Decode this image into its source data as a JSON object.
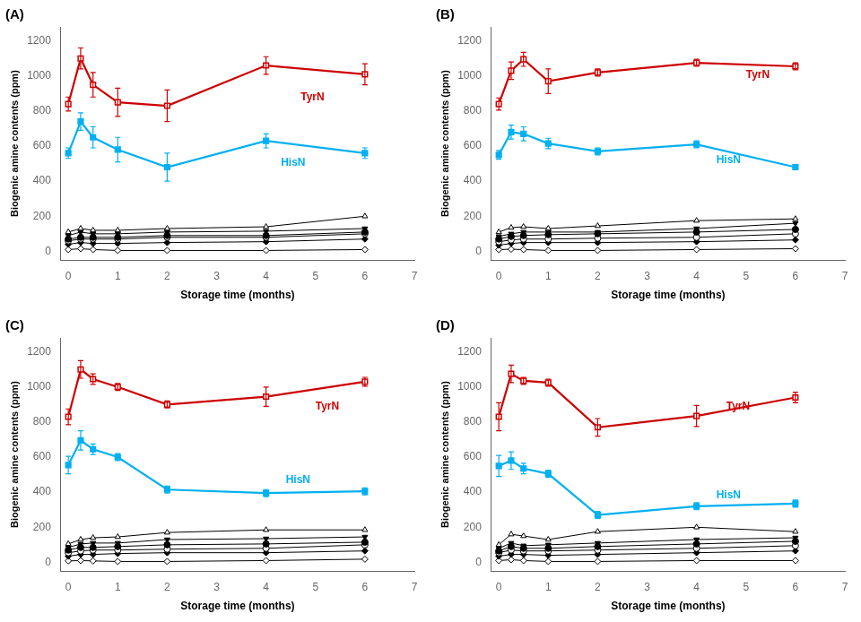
{
  "chart_data": [
    {
      "type": "line",
      "title": "(A)",
      "xlabel": "Storage time (months)",
      "ylabel": "Biogenic amine contents (ppm)",
      "x": [
        0,
        0.25,
        0.5,
        1,
        2,
        4,
        6
      ],
      "xlim": [
        -0.15,
        7.0
      ],
      "xticks": [
        0,
        1,
        2,
        3,
        4,
        5,
        6,
        7
      ],
      "ylim": [
        -50,
        1280
      ],
      "yticks": [
        0,
        200,
        400,
        600,
        800,
        1000,
        1200
      ],
      "grid": false,
      "series": [
        {
          "color": "#cc0000",
          "marker": "open_square",
          "values": [
            840,
            1100,
            950,
            850,
            830,
            1060,
            1010
          ],
          "yerr": [
            40,
            60,
            70,
            80,
            90,
            50,
            60
          ]
        },
        {
          "color": "#00b0f0",
          "marker": "square",
          "values": [
            560,
            740,
            650,
            580,
            480,
            630,
            560
          ],
          "yerr": [
            30,
            50,
            60,
            70,
            80,
            40,
            30
          ]
        },
        {
          "color": "#000000",
          "marker": "open_triangle",
          "values": [
            110,
            130,
            120,
            120,
            130,
            140,
            200
          ]
        },
        {
          "color": "#000000",
          "marker": "triangle_down",
          "values": [
            90,
            110,
            100,
            100,
            110,
            115,
            130
          ]
        },
        {
          "color": "#000000",
          "marker": "circle",
          "values": [
            70,
            80,
            80,
            80,
            90,
            90,
            110
          ]
        },
        {
          "color": "#000000",
          "marker": "open_circle",
          "values": [
            60,
            70,
            70,
            70,
            80,
            80,
            100
          ]
        },
        {
          "color": "#000000",
          "marker": "diamond",
          "values": [
            40,
            50,
            45,
            45,
            50,
            55,
            70
          ]
        },
        {
          "color": "#000000",
          "marker": "open_diamond",
          "values": [
            10,
            15,
            10,
            5,
            5,
            5,
            10
          ]
        }
      ],
      "annotations": [
        {
          "text": "TyrN",
          "x": 4.7,
          "y": 860,
          "color": "#cc0000"
        },
        {
          "text": "HisN",
          "x": 4.3,
          "y": 490,
          "color": "#00b0f0"
        }
      ]
    },
    {
      "type": "line",
      "title": "(B)",
      "xlabel": "Storage time (months)",
      "ylabel": "Biogenic amine contents (ppm)",
      "x": [
        0,
        0.25,
        0.5,
        1,
        2,
        4,
        6
      ],
      "xlim": [
        -0.15,
        7.0
      ],
      "xticks": [
        0,
        1,
        2,
        3,
        4,
        5,
        6,
        7
      ],
      "ylim": [
        -50,
        1280
      ],
      "yticks": [
        0,
        200,
        400,
        600,
        800,
        1000,
        1200
      ],
      "grid": false,
      "series": [
        {
          "color": "#cc0000",
          "marker": "open_square",
          "values": [
            840,
            1030,
            1095,
            970,
            1020,
            1075,
            1055
          ],
          "yerr": [
            35,
            50,
            40,
            70,
            20,
            20,
            20
          ]
        },
        {
          "color": "#00b0f0",
          "marker": "square",
          "values": [
            550,
            680,
            670,
            615,
            570,
            610,
            480
          ],
          "yerr": [
            25,
            40,
            40,
            30,
            20,
            20,
            15
          ]
        },
        {
          "color": "#000000",
          "marker": "open_triangle",
          "values": [
            110,
            135,
            140,
            130,
            145,
            175,
            185
          ]
        },
        {
          "color": "#000000",
          "marker": "triangle_down",
          "values": [
            85,
            100,
            110,
            110,
            110,
            130,
            160
          ]
        },
        {
          "color": "#000000",
          "marker": "circle",
          "values": [
            70,
            85,
            90,
            95,
            100,
            110,
            125
          ]
        },
        {
          "color": "#000000",
          "marker": "open_circle",
          "values": [
            55,
            65,
            70,
            70,
            75,
            80,
            100
          ]
        },
        {
          "color": "#000000",
          "marker": "diamond",
          "values": [
            35,
            45,
            50,
            50,
            50,
            55,
            65
          ]
        },
        {
          "color": "#000000",
          "marker": "open_diamond",
          "values": [
            10,
            12,
            10,
            5,
            5,
            10,
            15
          ]
        }
      ],
      "annotations": [
        {
          "text": "TyrN",
          "x": 5.0,
          "y": 990,
          "color": "#cc0000"
        },
        {
          "text": "HisN",
          "x": 4.4,
          "y": 505,
          "color": "#00b0f0"
        }
      ]
    },
    {
      "type": "line",
      "title": "(C)",
      "xlabel": "Storage time (months)",
      "ylabel": "Biogenic amine contents (ppm)",
      "x": [
        0,
        0.25,
        0.5,
        1,
        2,
        4,
        6
      ],
      "xlim": [
        -0.15,
        7.0
      ],
      "xticks": [
        0,
        1,
        2,
        3,
        4,
        5,
        6,
        7
      ],
      "ylim": [
        -50,
        1280
      ],
      "yticks": [
        0,
        200,
        400,
        600,
        800,
        1000,
        1200
      ],
      "grid": false,
      "series": [
        {
          "color": "#cc0000",
          "marker": "open_square",
          "values": [
            830,
            1100,
            1045,
            1000,
            900,
            945,
            1030
          ],
          "yerr": [
            45,
            50,
            30,
            20,
            20,
            55,
            25
          ]
        },
        {
          "color": "#00b0f0",
          "marker": "square",
          "values": [
            555,
            695,
            645,
            600,
            415,
            395,
            405
          ],
          "yerr": [
            50,
            55,
            30,
            20,
            20,
            20,
            20
          ]
        },
        {
          "color": "#000000",
          "marker": "open_triangle",
          "values": [
            105,
            130,
            140,
            145,
            170,
            185,
            185
          ]
        },
        {
          "color": "#000000",
          "marker": "triangle_down",
          "values": [
            85,
            105,
            110,
            110,
            130,
            135,
            145
          ]
        },
        {
          "color": "#000000",
          "marker": "circle",
          "values": [
            70,
            85,
            85,
            90,
            100,
            105,
            115
          ]
        },
        {
          "color": "#000000",
          "marker": "open_circle",
          "values": [
            55,
            65,
            70,
            70,
            75,
            80,
            100
          ]
        },
        {
          "color": "#000000",
          "marker": "diamond",
          "values": [
            35,
            45,
            45,
            50,
            55,
            55,
            65
          ]
        },
        {
          "color": "#000000",
          "marker": "open_diamond",
          "values": [
            8,
            10,
            8,
            5,
            5,
            10,
            18
          ]
        }
      ],
      "annotations": [
        {
          "text": "TyrN",
          "x": 5.0,
          "y": 870,
          "color": "#cc0000"
        },
        {
          "text": "HisN",
          "x": 4.4,
          "y": 450,
          "color": "#00b0f0"
        }
      ]
    },
    {
      "type": "line",
      "title": "(D)",
      "xlabel": "Storage time (months)",
      "ylabel": "Biogenic amine contents (ppm)",
      "x": [
        0,
        0.25,
        0.5,
        1,
        2,
        4,
        6
      ],
      "xlim": [
        -0.15,
        7.0
      ],
      "xticks": [
        0,
        1,
        2,
        3,
        4,
        5,
        6,
        7
      ],
      "ylim": [
        -50,
        1280
      ],
      "yticks": [
        0,
        200,
        400,
        600,
        800,
        1000,
        1200
      ],
      "grid": false,
      "series": [
        {
          "color": "#cc0000",
          "marker": "open_square",
          "values": [
            830,
            1075,
            1035,
            1025,
            770,
            835,
            940
          ],
          "yerr": [
            80,
            50,
            20,
            20,
            50,
            60,
            30
          ]
        },
        {
          "color": "#00b0f0",
          "marker": "square",
          "values": [
            550,
            580,
            535,
            505,
            270,
            320,
            335
          ],
          "yerr": [
            60,
            50,
            30,
            20,
            20,
            20,
            20
          ]
        },
        {
          "color": "#000000",
          "marker": "open_triangle",
          "values": [
            100,
            160,
            150,
            130,
            175,
            200,
            175
          ]
        },
        {
          "color": "#000000",
          "marker": "triangle_down",
          "values": [
            80,
            110,
            95,
            100,
            110,
            130,
            140
          ]
        },
        {
          "color": "#000000",
          "marker": "circle",
          "values": [
            65,
            90,
            80,
            80,
            90,
            105,
            120
          ]
        },
        {
          "color": "#000000",
          "marker": "open_circle",
          "values": [
            55,
            70,
            65,
            65,
            70,
            80,
            95
          ]
        },
        {
          "color": "#000000",
          "marker": "diamond",
          "values": [
            35,
            45,
            45,
            40,
            45,
            55,
            65
          ]
        },
        {
          "color": "#000000",
          "marker": "open_diamond",
          "values": [
            10,
            15,
            10,
            5,
            5,
            10,
            10
          ]
        }
      ],
      "annotations": [
        {
          "text": "TyrN",
          "x": 4.6,
          "y": 870,
          "color": "#cc0000"
        },
        {
          "text": "HisN",
          "x": 4.4,
          "y": 365,
          "color": "#00b0f0"
        }
      ]
    }
  ]
}
